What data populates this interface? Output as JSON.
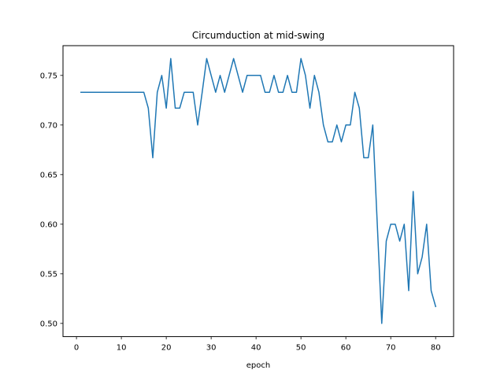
{
  "chart_data": {
    "type": "line",
    "title": "Circumduction at mid-swing",
    "xlabel": "epoch",
    "ylabel": "",
    "xlim": [
      -3,
      84
    ],
    "ylim": [
      0.4867,
      0.78
    ],
    "xticks": [
      0,
      10,
      20,
      30,
      40,
      50,
      60,
      70,
      80
    ],
    "yticks": [
      0.5,
      0.55,
      0.6,
      0.65,
      0.7,
      0.75
    ],
    "ytick_labels": [
      "0.50",
      "0.55",
      "0.60",
      "0.65",
      "0.70",
      "0.75"
    ],
    "grid": false,
    "line_color": "#1f77b4",
    "series": [
      {
        "x": [
          1,
          2,
          3,
          4,
          5,
          6,
          7,
          8,
          9,
          10,
          11,
          12,
          13,
          14,
          15,
          16,
          17,
          18,
          19,
          20,
          21,
          22,
          23,
          24,
          25,
          26,
          27,
          28,
          29,
          30,
          31,
          32,
          33,
          34,
          35,
          36,
          37,
          38,
          39,
          40,
          41,
          42,
          43,
          44,
          45,
          46,
          47,
          48,
          49,
          50,
          51,
          52,
          53,
          54,
          55,
          56,
          57,
          58,
          59,
          60,
          61,
          62,
          63,
          64,
          65,
          66,
          67,
          68,
          69,
          70,
          71,
          72,
          73,
          74,
          75,
          76,
          77,
          78,
          79,
          80
        ],
        "y": [
          0.733,
          0.733,
          0.733,
          0.733,
          0.733,
          0.733,
          0.733,
          0.733,
          0.733,
          0.733,
          0.733,
          0.733,
          0.733,
          0.733,
          0.733,
          0.717,
          0.667,
          0.733,
          0.75,
          0.717,
          0.767,
          0.717,
          0.717,
          0.733,
          0.733,
          0.733,
          0.7,
          0.733,
          0.767,
          0.75,
          0.733,
          0.75,
          0.733,
          0.75,
          0.767,
          0.75,
          0.733,
          0.75,
          0.75,
          0.75,
          0.75,
          0.733,
          0.733,
          0.75,
          0.733,
          0.733,
          0.75,
          0.733,
          0.733,
          0.767,
          0.75,
          0.717,
          0.75,
          0.733,
          0.7,
          0.683,
          0.683,
          0.7,
          0.683,
          0.7,
          0.7,
          0.733,
          0.717,
          0.667,
          0.667,
          0.7,
          0.6,
          0.5,
          0.583,
          0.6,
          0.6,
          0.583,
          0.6,
          0.533,
          0.633,
          0.55,
          0.567,
          0.6,
          0.533,
          0.517
        ]
      }
    ]
  }
}
